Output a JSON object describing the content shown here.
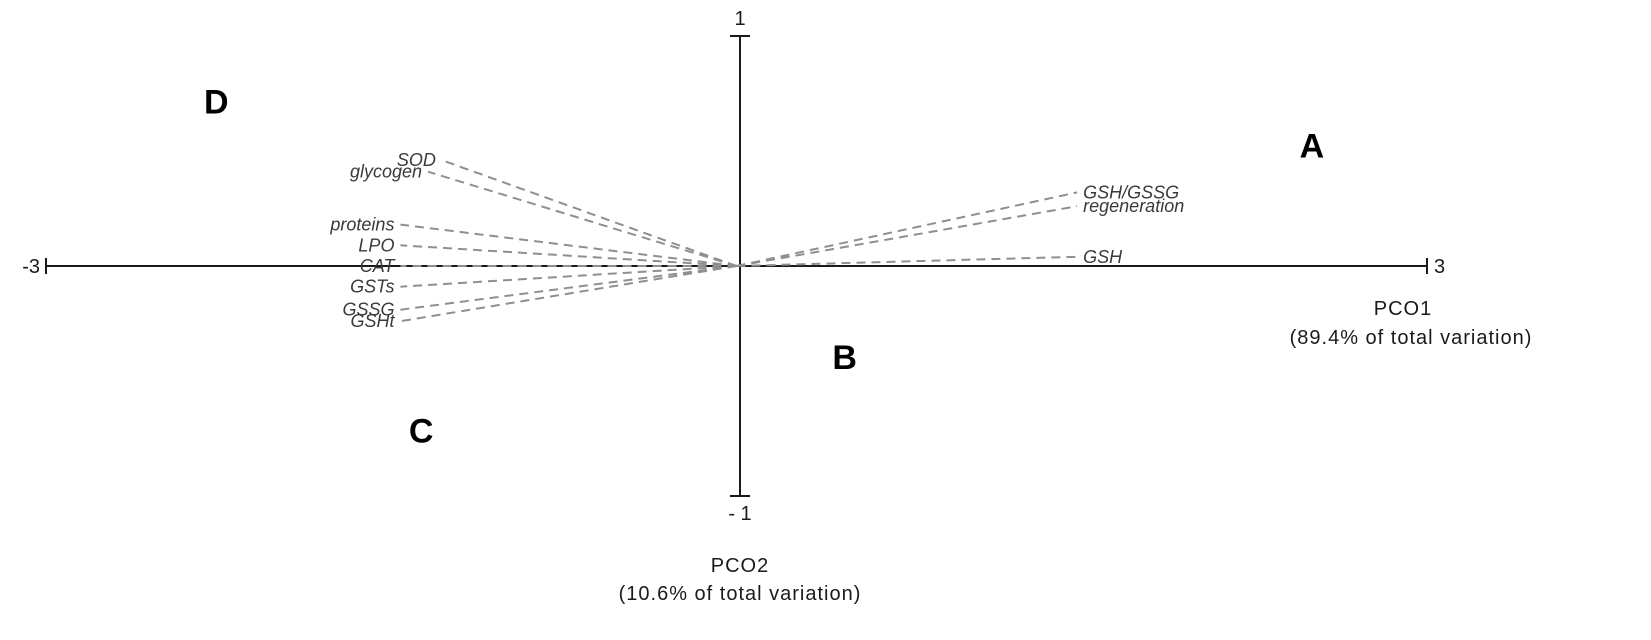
{
  "chart_data": {
    "type": "scatter",
    "subtype": "PCO biplot",
    "xlabel": "PCO1",
    "xlabel_sub": "(89.4% of total variation)",
    "ylabel": "PCO2",
    "ylabel_sub": "(10.6% of total variation)",
    "xlim": [
      -3,
      3
    ],
    "ylim": [
      -1,
      1
    ],
    "x_tick_labels": [
      "-3",
      "3"
    ],
    "y_tick_labels": [
      "1",
      "- 1"
    ],
    "grid": false,
    "group_labels": [
      {
        "name": "A",
        "x": 2.5,
        "y": 0.52
      },
      {
        "name": "B",
        "x": 0.47,
        "y": -0.4
      },
      {
        "name": "C",
        "x": -1.37,
        "y": -0.72
      },
      {
        "name": "D",
        "x": -2.26,
        "y": 0.71
      }
    ],
    "vectors": [
      {
        "name": "SOD",
        "x": -1.28,
        "y": 0.46
      },
      {
        "name": "glycogen",
        "x": -1.34,
        "y": 0.41
      },
      {
        "name": "proteins",
        "x": -1.46,
        "y": 0.18
      },
      {
        "name": "LPO",
        "x": -1.46,
        "y": 0.09
      },
      {
        "name": "CAT",
        "x": -1.46,
        "y": 0.0
      },
      {
        "name": "GSTs",
        "x": -1.46,
        "y": -0.09
      },
      {
        "name": "GSSG",
        "x": -1.46,
        "y": -0.19
      },
      {
        "name": "GSHt",
        "x": -1.46,
        "y": -0.24
      },
      {
        "name": "GSH/GSSG",
        "x": 1.48,
        "y": 0.32
      },
      {
        "name": "regeneration",
        "x": 1.48,
        "y": 0.26
      },
      {
        "name": "GSH",
        "x": 1.48,
        "y": 0.04
      }
    ]
  }
}
